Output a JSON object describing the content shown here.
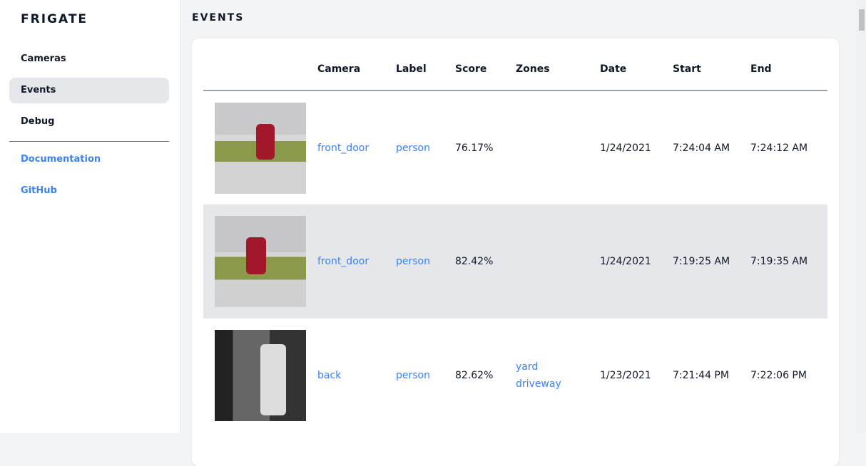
{
  "sidebar": {
    "brand": "FRIGATE",
    "items": [
      {
        "label": "Cameras"
      },
      {
        "label": "Events",
        "active": true
      },
      {
        "label": "Debug"
      }
    ],
    "links": [
      {
        "label": "Documentation"
      },
      {
        "label": "GitHub"
      }
    ]
  },
  "main": {
    "title": "EVENTS",
    "columns": [
      "",
      "Camera",
      "Label",
      "Score",
      "Zones",
      "Date",
      "Start",
      "End"
    ],
    "rows": [
      {
        "camera": "front_door",
        "label": "person",
        "score": "76.17%",
        "zones": [
          "",
          ""
        ],
        "date": "1/24/2021",
        "start": "7:24:04 AM",
        "end": "7:24:12 AM"
      },
      {
        "camera": "front_door",
        "label": "person",
        "score": "82.42%",
        "zones": [
          "",
          ""
        ],
        "date": "1/24/2021",
        "start": "7:19:25 AM",
        "end": "7:19:35 AM"
      },
      {
        "camera": "back",
        "label": "person",
        "score": "82.62%",
        "zones": [
          "yard",
          "driveway"
        ],
        "date": "1/23/2021",
        "start": "7:21:44 PM",
        "end": "7:22:06 PM"
      }
    ]
  },
  "colors": {
    "link": "#3b82f6",
    "active_bg": "#e5e7eb"
  }
}
